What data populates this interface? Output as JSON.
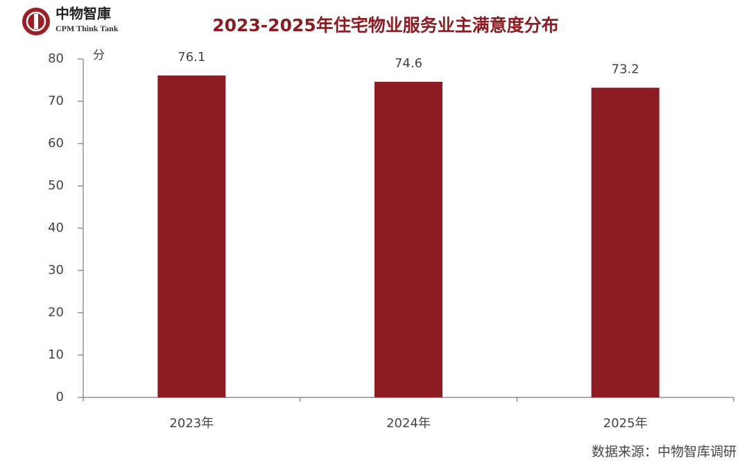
{
  "chart_data": {
    "type": "bar",
    "title": "2023-2025年住宅物业服务业主满意度分布",
    "logo": "中物智庫",
    "logo_subtitle": "CPM Think Tank",
    "y_unit": "分",
    "categories": [
      "2023年",
      "2024年",
      "2025年"
    ],
    "values": [
      76.1,
      74.6,
      73.2
    ],
    "color": "#8c1c22",
    "ylim": [
      0,
      80
    ],
    "yticks": [
      0,
      10,
      20,
      30,
      40,
      50,
      60,
      70,
      80
    ],
    "grid": false,
    "source": "数据来源：中物智库调研"
  }
}
